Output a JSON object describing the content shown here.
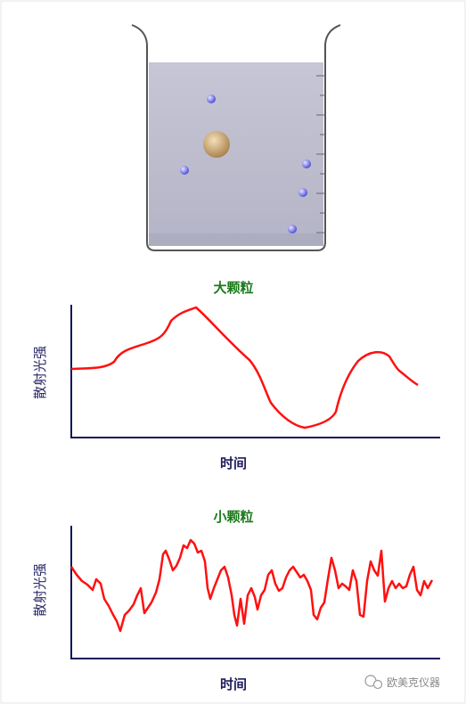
{
  "charts": [
    {
      "title": "大颗粒",
      "y_label": "散射光强",
      "x_label": "时间"
    },
    {
      "title": "小颗粒",
      "y_label": "散射光强",
      "x_label": "时间"
    }
  ],
  "watermark": "欧美克仪器"
}
